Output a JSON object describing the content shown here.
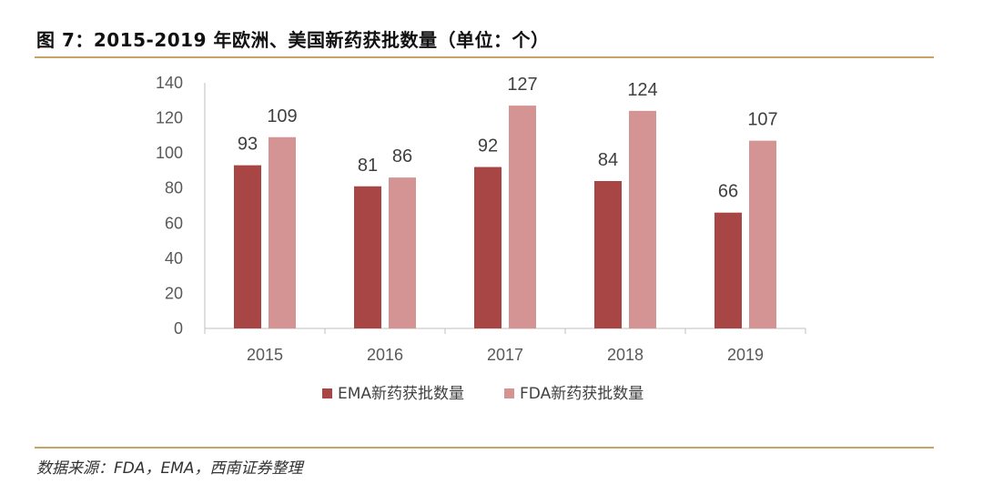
{
  "figure": {
    "title": "图 7：2015-2019 年欧洲、美国新药获批数量（单位：个）",
    "source": "数据来源：FDA，EMA，西南证券整理"
  },
  "colors": {
    "ema": "#a84646",
    "fda": "#d49494",
    "rule": "#c9a265",
    "axis": "#bfbfbf"
  },
  "chart_data": {
    "type": "bar",
    "title": "",
    "xlabel": "",
    "ylabel": "",
    "categories": [
      "2015",
      "2016",
      "2017",
      "2018",
      "2019"
    ],
    "series": [
      {
        "name": "EMA新药获批数量",
        "values": [
          93,
          81,
          92,
          84,
          66
        ]
      },
      {
        "name": "FDA新药获批数量",
        "values": [
          109,
          86,
          127,
          124,
          107
        ]
      }
    ],
    "ylim": [
      0,
      140
    ],
    "yticks": [
      0,
      20,
      40,
      60,
      80,
      100,
      120,
      140
    ],
    "grid": false,
    "legend": "bottom",
    "data_labels": true
  }
}
